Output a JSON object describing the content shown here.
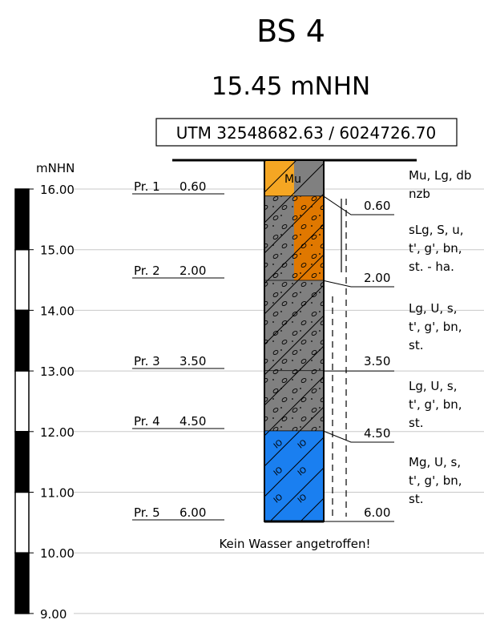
{
  "title": "BS 4",
  "elevation": "15.45 mNHN",
  "utm": "UTM 32548682.63 / 6024726.70",
  "axis_label": "mNHN",
  "axis_ticks": [
    "16.00",
    "15.00",
    "14.00",
    "13.00",
    "12.00",
    "11.00",
    "10.00",
    "9.00"
  ],
  "samples": [
    {
      "label": "Pr. 1",
      "depth": "0.60"
    },
    {
      "label": "Pr. 2",
      "depth": "2.00"
    },
    {
      "label": "Pr. 3",
      "depth": "3.50"
    },
    {
      "label": "Pr. 4",
      "depth": "4.50"
    },
    {
      "label": "Pr. 5",
      "depth": "6.00"
    }
  ],
  "layers": [
    {
      "top": 0.0,
      "bottom": 0.6,
      "depth_label": "0.60",
      "code": "Mu",
      "left_color": "#f5a623",
      "right_color": "#808080",
      "description": [
        "Mu, Lg, db",
        "nzb"
      ]
    },
    {
      "top": 0.6,
      "bottom": 2.0,
      "depth_label": "2.00",
      "left_color": "#808080",
      "right_color": "#e07800",
      "description": [
        "sLg, S, u,",
        "t', g', bn,",
        "st. - ha."
      ]
    },
    {
      "top": 2.0,
      "bottom": 3.5,
      "depth_label": "3.50",
      "left_color": "#808080",
      "right_color": "#808080",
      "description": [
        "Lg, U, s,",
        "t', g', bn,",
        "st."
      ]
    },
    {
      "top": 3.5,
      "bottom": 4.5,
      "depth_label": "4.50",
      "left_color": "#808080",
      "right_color": "#808080",
      "description": [
        "Lg, U, s,",
        "t', g', bn,",
        "st."
      ]
    },
    {
      "top": 4.5,
      "bottom": 6.0,
      "depth_label": "6.00",
      "left_color": "#1a7ff0",
      "right_color": "#1a7ff0",
      "description": [
        "Mg, U, s,",
        "t', g', bn,",
        "st."
      ]
    }
  ],
  "pattern_glyph": "IO",
  "water_note": "Kein Wasser angetroffen!"
}
